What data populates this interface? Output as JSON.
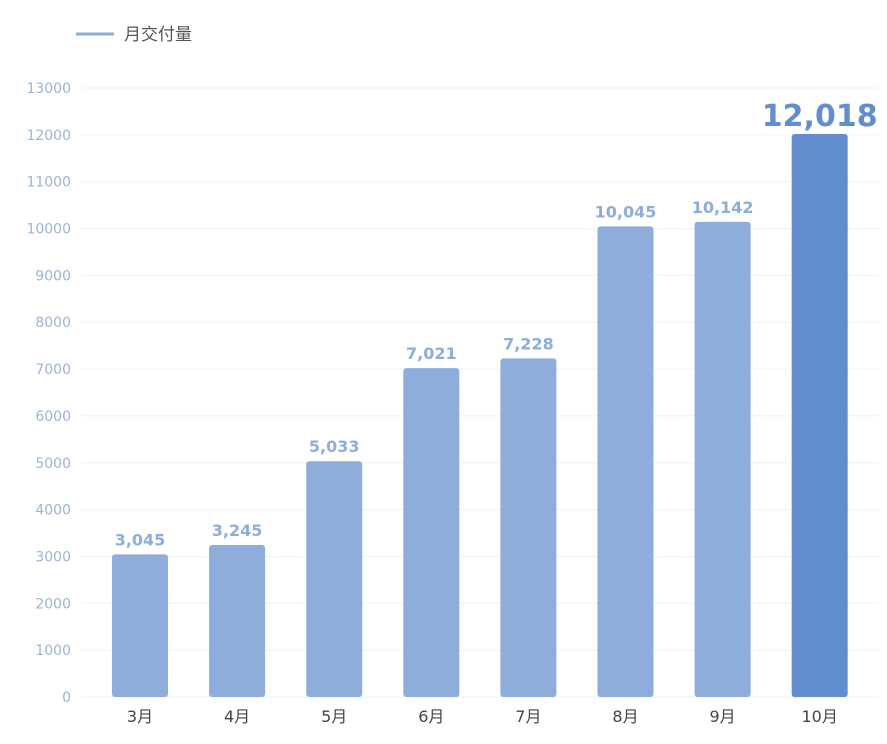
{
  "chart_data": {
    "type": "bar",
    "legend": {
      "label": "月交付量",
      "placement": "top-left"
    },
    "categories": [
      "3月",
      "4月",
      "5月",
      "6月",
      "7月",
      "8月",
      "9月",
      "10月"
    ],
    "values": [
      3045,
      3245,
      5033,
      7021,
      7228,
      10045,
      10142,
      12018
    ],
    "value_labels": [
      "3,045",
      "3,245",
      "5,033",
      "7,021",
      "7,228",
      "10,045",
      "10,142",
      "12,018"
    ],
    "highlight_index": 7,
    "yticks": [
      0,
      1000,
      2000,
      3000,
      4000,
      5000,
      6000,
      7000,
      8000,
      9000,
      10000,
      11000,
      12000,
      13000
    ],
    "ylim": [
      0,
      13000
    ],
    "grid": true,
    "colors": {
      "bar": "#8eadda",
      "highlight": "#628ed0",
      "legend_line": "#8eadda",
      "label": "#8eadda",
      "label_highlight": "#628ed0"
    }
  }
}
